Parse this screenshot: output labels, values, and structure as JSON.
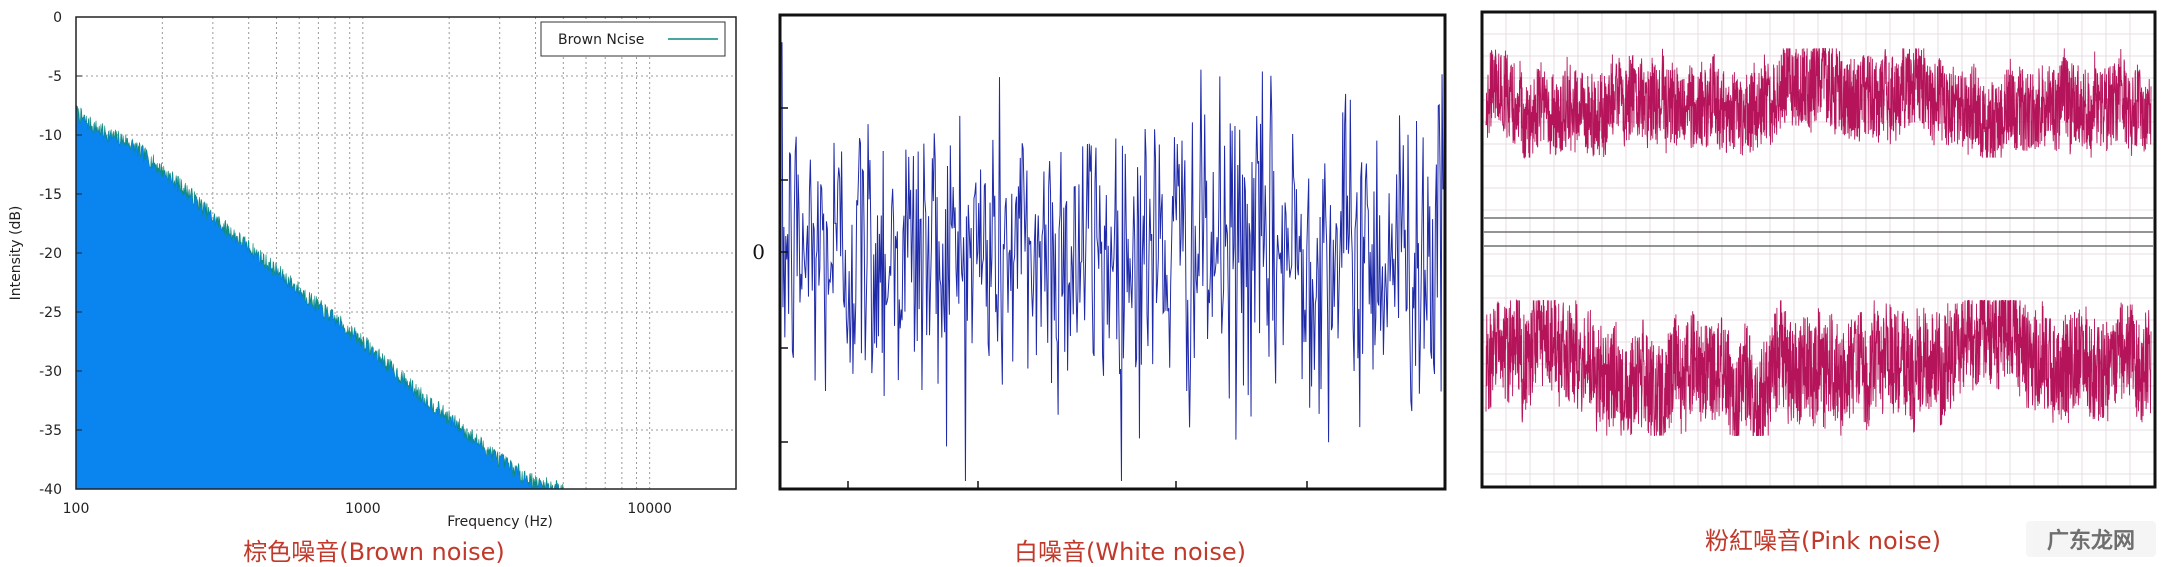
{
  "chart_data": [
    {
      "type": "area",
      "series": [
        {
          "name": "Brown Ncise",
          "x": [
            100,
            110,
            120,
            130,
            150,
            170,
            200,
            250,
            300,
            400,
            500,
            700,
            1000,
            1500,
            2000,
            3000,
            4000,
            5000
          ],
          "y": [
            -8,
            -9,
            -9.5,
            -10,
            -10.5,
            -11.5,
            -13,
            -15,
            -17,
            -19.5,
            -21.5,
            -24.5,
            -27.5,
            -31.5,
            -34,
            -37.5,
            -39.5,
            -40
          ]
        }
      ],
      "xlabel": "Frequency (Hz)",
      "ylabel": "Intensity (dB)",
      "xscale": "log",
      "xlim": [
        100,
        20000
      ],
      "ylim": [
        -40,
        0
      ],
      "x_tick_labels": [
        "100",
        "1000",
        "10000"
      ],
      "y_tick_labels": [
        "0",
        "-5",
        "-10",
        "-15",
        "-20",
        "-25",
        "-30",
        "-35",
        "-40"
      ],
      "grid": true,
      "legend": "top-right",
      "color": "#0a84ee",
      "caption": "棕色噪音(Brown noise)"
    },
    {
      "type": "line",
      "series": [
        {
          "name": "",
          "description_values": "random samples",
          "amplitude_range": [
            -1,
            1
          ]
        }
      ],
      "y_tick_labels": [
        "0"
      ],
      "grid": false,
      "color": "#1f2aa8",
      "caption": "白噪音(White noise)"
    },
    {
      "type": "line",
      "series": [
        {
          "name": "",
          "channel": "top"
        },
        {
          "name": "",
          "channel": "bottom"
        }
      ],
      "grid": true,
      "color": "#b5145a",
      "caption": "粉紅噪音(Pink noise)"
    }
  ],
  "watermark": "广东龙网"
}
